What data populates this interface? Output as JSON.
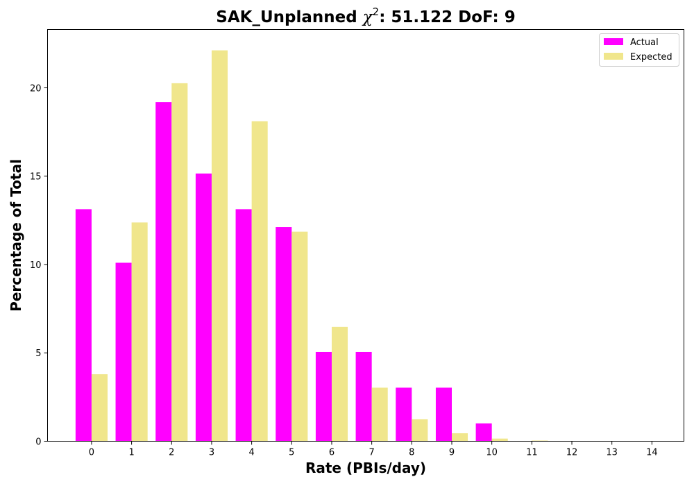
{
  "chart_data": {
    "type": "bar",
    "title_main": "SAK_Unplanned ",
    "title_chi": "χ",
    "title_exp": "2",
    "title_rest": ": 51.122 DoF: 9",
    "xlabel": "Rate (PBIs/day)",
    "ylabel": "Percentage of Total",
    "categories": [
      "0",
      "1",
      "2",
      "3",
      "4",
      "5",
      "6",
      "7",
      "8",
      "9",
      "10",
      "11",
      "12",
      "13",
      "14"
    ],
    "ylim": [
      0,
      23.3
    ],
    "yticks": [
      0,
      5,
      10,
      15,
      20
    ],
    "legend_position": "top-right",
    "series": [
      {
        "name": "Actual",
        "color": "#ff00ff",
        "values": [
          13.13,
          10.1,
          19.19,
          15.15,
          13.13,
          12.12,
          5.05,
          5.05,
          3.03,
          3.03,
          1.01,
          0,
          0,
          0,
          0
        ]
      },
      {
        "name": "Expected",
        "color": "#f0e68c",
        "values": [
          3.79,
          12.38,
          20.26,
          22.12,
          18.11,
          11.86,
          6.47,
          3.03,
          1.24,
          0.45,
          0.15,
          0.04,
          0.01,
          0.0,
          0.0
        ]
      }
    ]
  }
}
